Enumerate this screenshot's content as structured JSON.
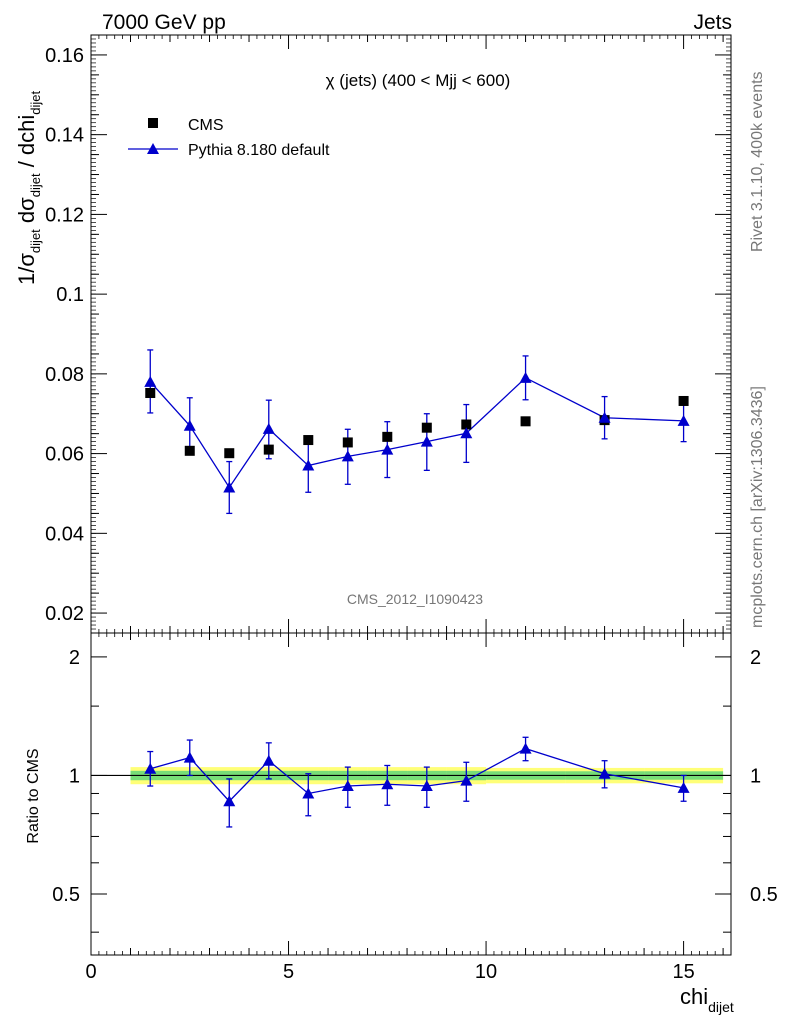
{
  "header": {
    "left": "7000 GeV pp",
    "right": "Jets"
  },
  "side": {
    "rivet": "Rivet 3.1.10,  400k events",
    "mcplots": "mcplots.cern.ch [arXiv:1306.3436]"
  },
  "chart_data": {
    "type": "scatter",
    "title": "χ (jets) (400 < Mjj <  600)",
    "analysis_id": "CMS_2012_I1090423",
    "xlabel": {
      "main": "chi",
      "sub": "dijet"
    },
    "ylabel": {
      "p1": "1/σ",
      "s1": "dijet",
      "p2": " dσ",
      "s2": "dijet",
      "p3": " / dchi",
      "s3": "dijet"
    },
    "ratio_ylabel": "Ratio to CMS",
    "xlim": [
      0,
      16.2
    ],
    "ylim": [
      0.015,
      0.165
    ],
    "ratio_ylim": [
      0.35,
      2.3
    ],
    "x_ticks": [
      "0",
      "5",
      "10",
      "15"
    ],
    "y_ticks": [
      "0.02",
      "0.04",
      "0.06",
      "0.08",
      "0.1",
      "0.12",
      "0.14",
      "0.16"
    ],
    "ratio_ticks": [
      "0.5",
      "1",
      "2"
    ],
    "legend_position": "top-left",
    "data_series": {
      "name": "CMS",
      "color": "#000000",
      "x": [
        1.5,
        2.5,
        3.5,
        4.5,
        5.5,
        6.5,
        7.5,
        8.5,
        9.5,
        11,
        13,
        15
      ],
      "y": [
        0.0752,
        0.0607,
        0.0601,
        0.061,
        0.0634,
        0.0628,
        0.0642,
        0.0665,
        0.0673,
        0.0681,
        0.0684,
        0.0732
      ],
      "xbins": [
        [
          1,
          2
        ],
        [
          2,
          3
        ],
        [
          3,
          4
        ],
        [
          4,
          5
        ],
        [
          5,
          6
        ],
        [
          6,
          7
        ],
        [
          7,
          8
        ],
        [
          8,
          9
        ],
        [
          9,
          10
        ],
        [
          10,
          12
        ],
        [
          12,
          14
        ],
        [
          14,
          16
        ]
      ],
      "uncertainty_band": [
        0.05,
        0.05,
        0.05,
        0.05,
        0.05,
        0.05,
        0.05,
        0.05,
        0.05,
        0.045,
        0.045,
        0.045
      ]
    },
    "mc_series": {
      "name": "Pythia 8.180 default",
      "color": "#0000cc",
      "x": [
        1.5,
        2.5,
        3.5,
        4.5,
        5.5,
        6.5,
        7.5,
        8.5,
        9.5,
        11,
        13,
        15
      ],
      "y": [
        0.078,
        0.067,
        0.0515,
        0.0662,
        0.057,
        0.0593,
        0.061,
        0.063,
        0.0651,
        0.079,
        0.069,
        0.0682
      ],
      "err_lo": [
        0.0078,
        0.007,
        0.0065,
        0.0075,
        0.0067,
        0.007,
        0.007,
        0.0072,
        0.0073,
        0.0055,
        0.0053,
        0.0052
      ],
      "err_hi": [
        0.008,
        0.007,
        0.0065,
        0.0072,
        0.0068,
        0.0068,
        0.007,
        0.007,
        0.0072,
        0.0055,
        0.0053,
        0.0052
      ],
      "ratio": [
        1.04,
        1.11,
        0.86,
        1.09,
        0.9,
        0.94,
        0.95,
        0.94,
        0.97,
        1.17,
        1.01,
        0.93
      ],
      "ratio_err_lo": [
        0.1,
        0.11,
        0.12,
        0.11,
        0.11,
        0.11,
        0.11,
        0.11,
        0.11,
        0.08,
        0.08,
        0.07
      ],
      "ratio_err_hi": [
        0.11,
        0.12,
        0.12,
        0.12,
        0.11,
        0.11,
        0.11,
        0.11,
        0.11,
        0.08,
        0.08,
        0.07
      ]
    },
    "band_colors": {
      "inner": "#77dd77",
      "outer": "#ffff77"
    }
  }
}
